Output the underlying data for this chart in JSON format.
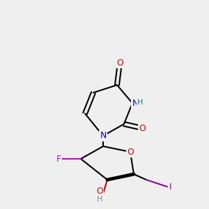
{
  "bg_color": "#efefef",
  "bond_color": "#000000",
  "bond_width": 1.5,
  "atom_colors": {
    "C": "#000000",
    "N": "#0000cc",
    "O": "#cc0000",
    "F": "#cc00cc",
    "I": "#8800aa",
    "H_N": "#008888",
    "H_O": "#888888"
  },
  "font_size": 9,
  "font_size_small": 8
}
